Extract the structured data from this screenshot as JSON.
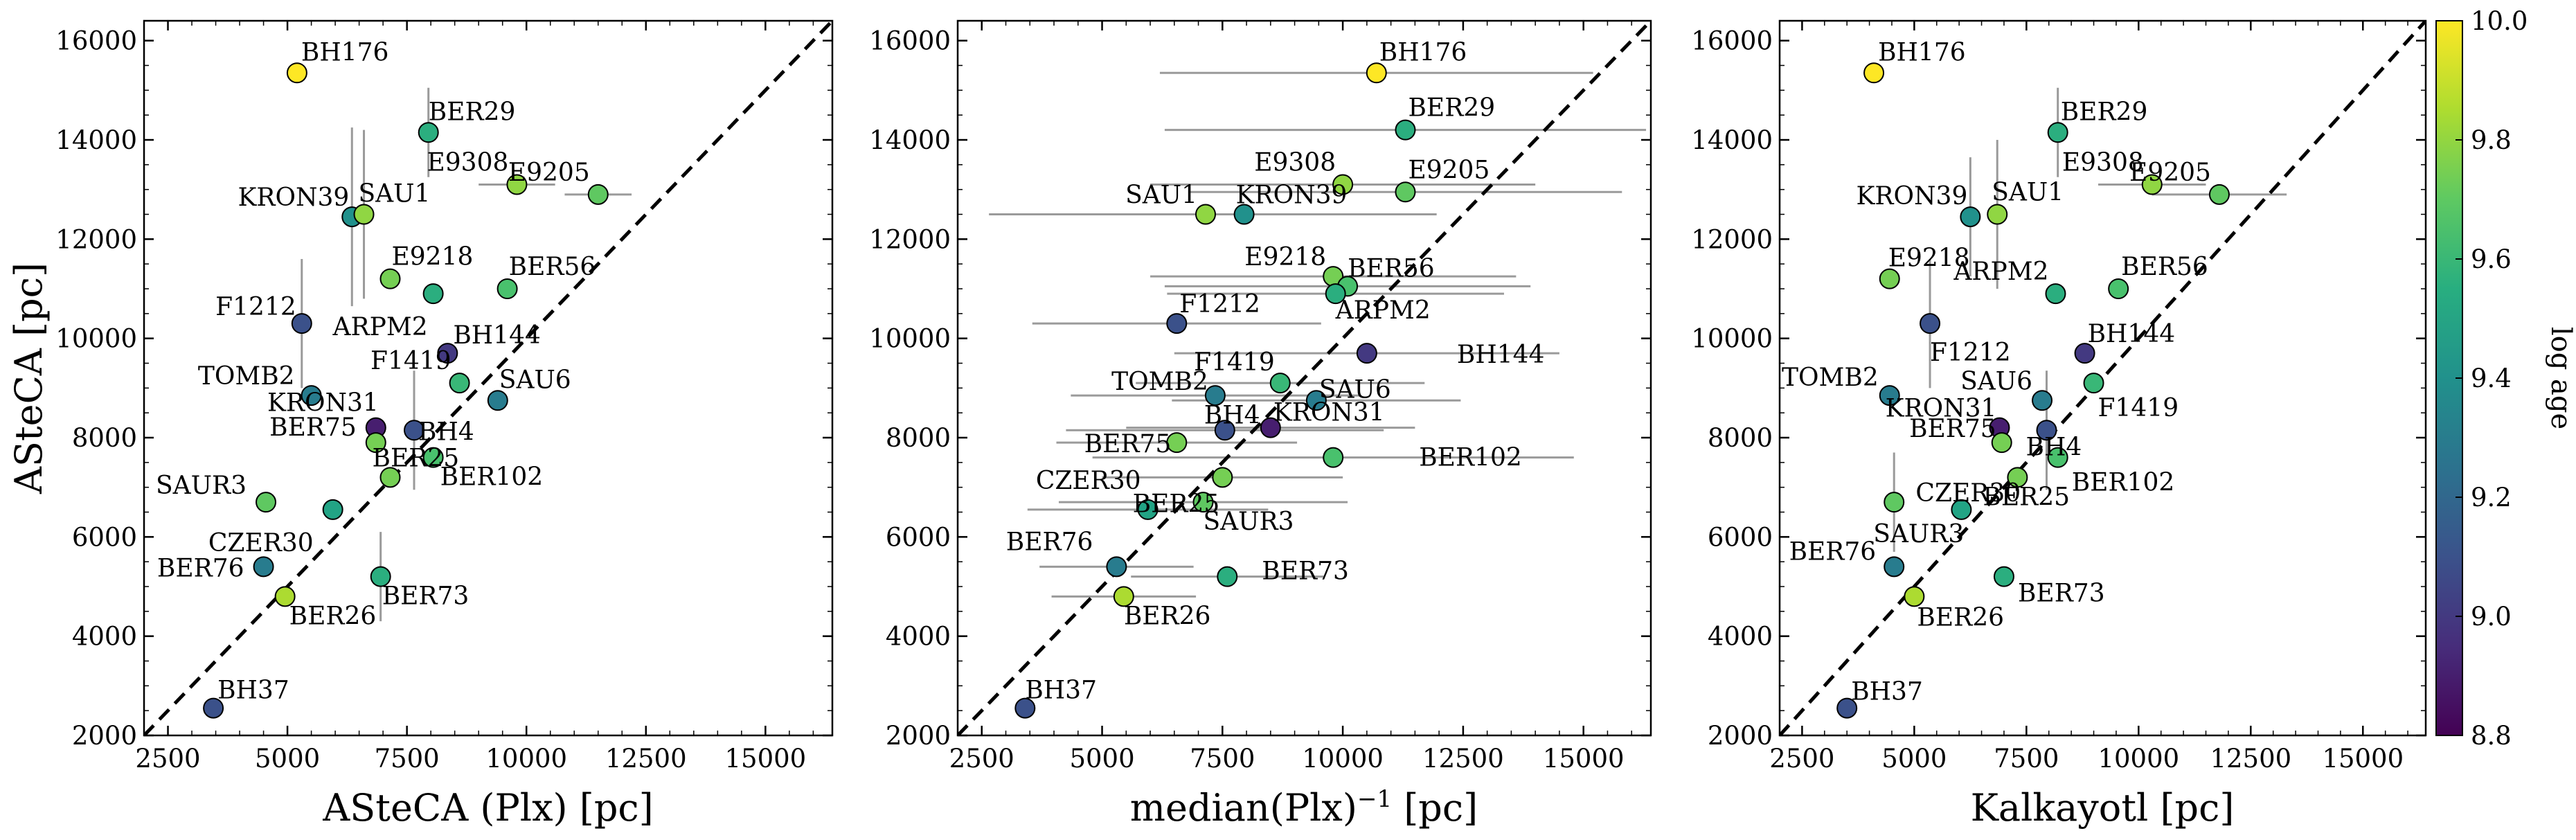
{
  "chart_data": {
    "type": "scatter",
    "ylabel": "ASteCA [pc]",
    "x_ticks": [
      2500,
      5000,
      7500,
      10000,
      12500,
      15000
    ],
    "y_ticks": [
      2000,
      4000,
      6000,
      8000,
      10000,
      12000,
      14000,
      16000
    ],
    "xlim": [
      2000,
      16400
    ],
    "ylim": [
      2000,
      16400
    ],
    "identity_line": true,
    "grid": false,
    "colorbar": {
      "label": "log age",
      "colormap": "viridis",
      "min": 8.8,
      "max": 10.0,
      "ticks": [
        "8.8",
        "9.0",
        "9.2",
        "9.4",
        "9.6",
        "9.8",
        "10.0"
      ]
    },
    "panels": [
      {
        "xlabel_main": "ASteCA (Plx) [pc]",
        "xlabel_sup": "",
        "xlabel_end": "",
        "points": [
          {
            "name": "BH176",
            "x": 5200,
            "y": 15350,
            "xerr": 0,
            "yerr": 0,
            "logage": 10.0
          },
          {
            "name": "BER29",
            "x": 7950,
            "y": 14150,
            "xerr": 0,
            "yerr": 900,
            "logage": 9.55
          },
          {
            "name": "E9308",
            "x": 9800,
            "y": 13100,
            "xerr": 800,
            "yerr": 0,
            "logage": 9.8
          },
          {
            "name": "E9205",
            "x": 11500,
            "y": 12900,
            "xerr": 700,
            "yerr": 0,
            "logage": 9.7
          },
          {
            "name": "KRON39",
            "x": 6350,
            "y": 12450,
            "xerr": 0,
            "yerr": 1800,
            "logage": 9.4
          },
          {
            "name": "SAU1",
            "x": 6600,
            "y": 12500,
            "xerr": 0,
            "yerr": 1700,
            "logage": 9.8
          },
          {
            "name": "E9218",
            "x": 7150,
            "y": 11200,
            "xerr": 0,
            "yerr": 0,
            "logage": 9.75
          },
          {
            "name": "ARPM2",
            "x": 8050,
            "y": 10900,
            "xerr": 0,
            "yerr": 0,
            "logage": 9.55
          },
          {
            "name": "BER56",
            "x": 9600,
            "y": 11000,
            "xerr": 0,
            "yerr": 0,
            "logage": 9.65
          },
          {
            "name": "F1212",
            "x": 5300,
            "y": 10300,
            "xerr": 0,
            "yerr": 1300,
            "logage": 9.1
          },
          {
            "name": "BH144",
            "x": 8350,
            "y": 9700,
            "xerr": 0,
            "yerr": 0,
            "logage": 9.0
          },
          {
            "name": "TOMB2",
            "x": 5500,
            "y": 8850,
            "xerr": 0,
            "yerr": 0,
            "logage": 9.3
          },
          {
            "name": "F1419",
            "x": 8600,
            "y": 9100,
            "xerr": 0,
            "yerr": 0,
            "logage": 9.6
          },
          {
            "name": "SAU6",
            "x": 9400,
            "y": 8750,
            "xerr": 0,
            "yerr": 0,
            "logage": 9.3
          },
          {
            "name": "KRON31",
            "x": 6850,
            "y": 8200,
            "xerr": 0,
            "yerr": 0,
            "logage": 8.9
          },
          {
            "name": "BH4",
            "x": 7650,
            "y": 8150,
            "xerr": 0,
            "yerr": 1200,
            "logage": 9.1
          },
          {
            "name": "BER75",
            "x": 6850,
            "y": 7900,
            "xerr": 0,
            "yerr": 0,
            "logage": 9.75
          },
          {
            "name": "BER102",
            "x": 8050,
            "y": 7600,
            "xerr": 0,
            "yerr": 0,
            "logage": 9.65
          },
          {
            "name": "BER25",
            "x": 7150,
            "y": 7200,
            "xerr": 0,
            "yerr": 0,
            "logage": 9.75
          },
          {
            "name": "SAUR3",
            "x": 4550,
            "y": 6700,
            "xerr": 0,
            "yerr": 0,
            "logage": 9.7
          },
          {
            "name": "CZER30",
            "x": 5950,
            "y": 6550,
            "xerr": 0,
            "yerr": 0,
            "logage": 9.5
          },
          {
            "name": "BER76",
            "x": 4500,
            "y": 5400,
            "xerr": 0,
            "yerr": 0,
            "logage": 9.3
          },
          {
            "name": "BER73",
            "x": 6950,
            "y": 5200,
            "xerr": 0,
            "yerr": 900,
            "logage": 9.55
          },
          {
            "name": "BER26",
            "x": 4950,
            "y": 4800,
            "xerr": 0,
            "yerr": 0,
            "logage": 9.85
          },
          {
            "name": "BH37",
            "x": 3450,
            "y": 2550,
            "xerr": 0,
            "yerr": 0,
            "logage": 9.1
          }
        ]
      },
      {
        "xlabel_main": "median(Plx)",
        "xlabel_sup": "−1",
        "xlabel_end": " [pc]",
        "points": [
          {
            "name": "BH176",
            "x": 10700,
            "y": 15350,
            "xerr": 4500,
            "yerr": 0,
            "logage": 10.0
          },
          {
            "name": "BER29",
            "x": 11300,
            "y": 14200,
            "xerr": 5000,
            "yerr": 0,
            "logage": 9.55
          },
          {
            "name": "E9308",
            "x": 10000,
            "y": 13100,
            "xerr": 4000,
            "yerr": 0,
            "logage": 9.8
          },
          {
            "name": "E9205",
            "x": 11300,
            "y": 12950,
            "xerr": 4500,
            "yerr": 0,
            "logage": 9.7
          },
          {
            "name": "SAU1",
            "x": 7150,
            "y": 12500,
            "xerr": 4500,
            "yerr": 0,
            "logage": 9.8
          },
          {
            "name": "KRON39",
            "x": 7950,
            "y": 12500,
            "xerr": 4000,
            "yerr": 0,
            "logage": 9.4
          },
          {
            "name": "E9218",
            "x": 9800,
            "y": 11250,
            "xerr": 3800,
            "yerr": 0,
            "logage": 9.75
          },
          {
            "name": "BER56",
            "x": 10100,
            "y": 11050,
            "xerr": 3800,
            "yerr": 0,
            "logage": 9.65
          },
          {
            "name": "ARPM2",
            "x": 9850,
            "y": 10900,
            "xerr": 3500,
            "yerr": 0,
            "logage": 9.55
          },
          {
            "name": "F1212",
            "x": 6550,
            "y": 10300,
            "xerr": 3000,
            "yerr": 0,
            "logage": 9.1
          },
          {
            "name": "BH144",
            "x": 10500,
            "y": 9700,
            "xerr": 4000,
            "yerr": 0,
            "logage": 9.0
          },
          {
            "name": "F1419",
            "x": 8700,
            "y": 9100,
            "xerr": 3000,
            "yerr": 0,
            "logage": 9.6
          },
          {
            "name": "TOMB2",
            "x": 7350,
            "y": 8850,
            "xerr": 3000,
            "yerr": 0,
            "logage": 9.3
          },
          {
            "name": "SAU6",
            "x": 9450,
            "y": 8750,
            "xerr": 3000,
            "yerr": 0,
            "logage": 9.3
          },
          {
            "name": "KRON31",
            "x": 8500,
            "y": 8200,
            "xerr": 3000,
            "yerr": 0,
            "logage": 8.9
          },
          {
            "name": "BH4",
            "x": 7550,
            "y": 8150,
            "xerr": 3300,
            "yerr": 0,
            "logage": 9.1
          },
          {
            "name": "BER75",
            "x": 6550,
            "y": 7900,
            "xerr": 2500,
            "yerr": 0,
            "logage": 9.75
          },
          {
            "name": "BER102",
            "x": 9800,
            "y": 7600,
            "xerr": 5000,
            "yerr": 0,
            "logage": 9.65
          },
          {
            "name": "BER25",
            "x": 7500,
            "y": 7200,
            "xerr": 2500,
            "yerr": 0,
            "logage": 9.75
          },
          {
            "name": "SAUR3",
            "x": 7100,
            "y": 6700,
            "xerr": 3000,
            "yerr": 0,
            "logage": 9.7
          },
          {
            "name": "CZER30",
            "x": 5950,
            "y": 6550,
            "xerr": 2500,
            "yerr": 0,
            "logage": 9.5
          },
          {
            "name": "BER76",
            "x": 5300,
            "y": 5400,
            "xerr": 1600,
            "yerr": 0,
            "logage": 9.3
          },
          {
            "name": "BER73",
            "x": 7600,
            "y": 5200,
            "xerr": 2000,
            "yerr": 0,
            "logage": 9.55
          },
          {
            "name": "BER26",
            "x": 5450,
            "y": 4800,
            "xerr": 1500,
            "yerr": 0,
            "logage": 9.85
          },
          {
            "name": "BH37",
            "x": 3400,
            "y": 2550,
            "xerr": 0,
            "yerr": 0,
            "logage": 9.1
          }
        ]
      },
      {
        "xlabel_main": "Kalkayotl [pc]",
        "xlabel_sup": "",
        "xlabel_end": "",
        "points": [
          {
            "name": "BH176",
            "x": 4100,
            "y": 15350,
            "xerr": 0,
            "yerr": 0,
            "logage": 10.0
          },
          {
            "name": "BER29",
            "x": 8200,
            "y": 14150,
            "xerr": 0,
            "yerr": 900,
            "logage": 9.55
          },
          {
            "name": "E9308",
            "x": 10300,
            "y": 13100,
            "xerr": 1200,
            "yerr": 0,
            "logage": 9.8
          },
          {
            "name": "E9205",
            "x": 11800,
            "y": 12900,
            "xerr": 1500,
            "yerr": 0,
            "logage": 9.7
          },
          {
            "name": "KRON39",
            "x": 6250,
            "y": 12450,
            "xerr": 0,
            "yerr": 1200,
            "logage": 9.4
          },
          {
            "name": "SAU1",
            "x": 6850,
            "y": 12500,
            "xerr": 0,
            "yerr": 1500,
            "logage": 9.8
          },
          {
            "name": "E9218",
            "x": 4450,
            "y": 11200,
            "xerr": 0,
            "yerr": 0,
            "logage": 9.75
          },
          {
            "name": "ARPM2",
            "x": 8150,
            "y": 10900,
            "xerr": 0,
            "yerr": 0,
            "logage": 9.55
          },
          {
            "name": "BER56",
            "x": 9550,
            "y": 11000,
            "xerr": 0,
            "yerr": 0,
            "logage": 9.65
          },
          {
            "name": "F1212",
            "x": 5350,
            "y": 10300,
            "xerr": 0,
            "yerr": 1300,
            "logage": 9.1
          },
          {
            "name": "BH144",
            "x": 8800,
            "y": 9700,
            "xerr": 0,
            "yerr": 0,
            "logage": 9.0
          },
          {
            "name": "TOMB2",
            "x": 4450,
            "y": 8850,
            "xerr": 0,
            "yerr": 0,
            "logage": 9.3
          },
          {
            "name": "F1419",
            "x": 9000,
            "y": 9100,
            "xerr": 0,
            "yerr": 0,
            "logage": 9.6
          },
          {
            "name": "SAU6",
            "x": 7850,
            "y": 8750,
            "xerr": 0,
            "yerr": 0,
            "logage": 9.3
          },
          {
            "name": "KRON31",
            "x": 6900,
            "y": 8200,
            "xerr": 0,
            "yerr": 0,
            "logage": 8.9
          },
          {
            "name": "BH4",
            "x": 7950,
            "y": 8150,
            "xerr": 0,
            "yerr": 1200,
            "logage": 9.1
          },
          {
            "name": "BER75",
            "x": 6950,
            "y": 7900,
            "xerr": 0,
            "yerr": 0,
            "logage": 9.75
          },
          {
            "name": "BER102",
            "x": 8200,
            "y": 7600,
            "xerr": 0,
            "yerr": 0,
            "logage": 9.65
          },
          {
            "name": "BER25",
            "x": 7300,
            "y": 7200,
            "xerr": 0,
            "yerr": 0,
            "logage": 9.75
          },
          {
            "name": "SAUR3",
            "x": 4550,
            "y": 6700,
            "xerr": 0,
            "yerr": 1000,
            "logage": 9.7
          },
          {
            "name": "CZER30",
            "x": 6050,
            "y": 6550,
            "xerr": 0,
            "yerr": 0,
            "logage": 9.5
          },
          {
            "name": "BER76",
            "x": 4550,
            "y": 5400,
            "xerr": 0,
            "yerr": 0,
            "logage": 9.3
          },
          {
            "name": "BER73",
            "x": 7000,
            "y": 5200,
            "xerr": 0,
            "yerr": 0,
            "logage": 9.55
          },
          {
            "name": "BER26",
            "x": 5000,
            "y": 4800,
            "xerr": 0,
            "yerr": 0,
            "logage": 9.85
          },
          {
            "name": "BH37",
            "x": 3500,
            "y": 2550,
            "xerr": 0,
            "yerr": 0,
            "logage": 9.1
          }
        ]
      }
    ]
  }
}
